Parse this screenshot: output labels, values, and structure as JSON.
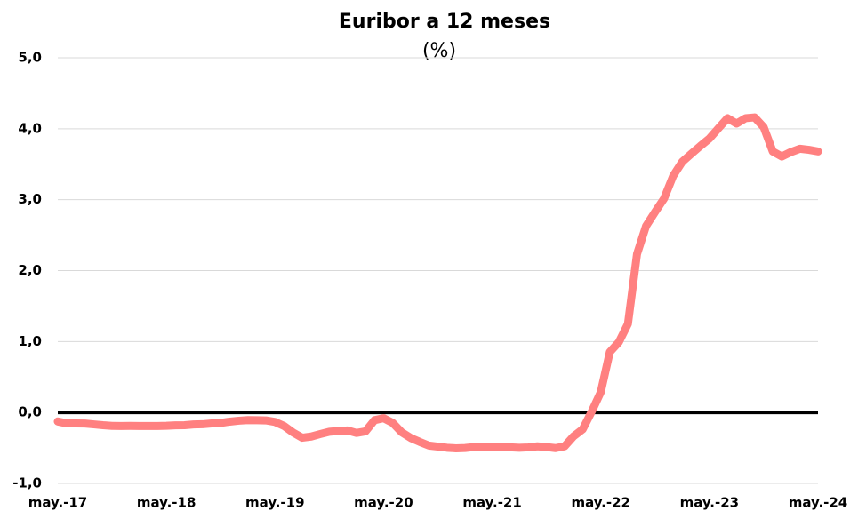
{
  "chart_data": {
    "type": "line",
    "title": "Euribor a 12 meses",
    "subtitle": "(%)",
    "categories": [
      "may.-17",
      null,
      null,
      null,
      null,
      null,
      null,
      null,
      null,
      null,
      null,
      null,
      "may.-18",
      null,
      null,
      null,
      null,
      null,
      null,
      null,
      null,
      null,
      null,
      null,
      "may.-19",
      null,
      null,
      null,
      null,
      null,
      null,
      null,
      null,
      null,
      null,
      null,
      "may.-20",
      null,
      null,
      null,
      null,
      null,
      null,
      null,
      null,
      null,
      null,
      null,
      "may.-21",
      null,
      null,
      null,
      null,
      null,
      null,
      null,
      null,
      null,
      null,
      null,
      "may.-22",
      null,
      null,
      null,
      null,
      null,
      null,
      null,
      null,
      null,
      null,
      null,
      "may.-23",
      null,
      null,
      null,
      null,
      null,
      null,
      null,
      null,
      null,
      null,
      null,
      "may.-24"
    ],
    "series": [
      {
        "name": "Euribor a 12 meses",
        "color": "#ff8080",
        "values": [
          -0.127,
          -0.154,
          -0.154,
          -0.156,
          -0.168,
          -0.18,
          -0.189,
          -0.19,
          -0.189,
          -0.191,
          -0.191,
          -0.19,
          -0.188,
          -0.181,
          -0.18,
          -0.169,
          -0.166,
          -0.154,
          -0.147,
          -0.129,
          -0.116,
          -0.108,
          -0.109,
          -0.112,
          -0.134,
          -0.19,
          -0.283,
          -0.356,
          -0.339,
          -0.304,
          -0.272,
          -0.261,
          -0.253,
          -0.288,
          -0.266,
          -0.108,
          -0.081,
          -0.147,
          -0.279,
          -0.359,
          -0.415,
          -0.466,
          -0.481,
          -0.497,
          -0.505,
          -0.501,
          -0.487,
          -0.484,
          -0.481,
          -0.484,
          -0.491,
          -0.498,
          -0.492,
          -0.477,
          -0.487,
          -0.502,
          -0.477,
          -0.335,
          -0.237,
          0.013,
          0.287,
          0.852,
          0.992,
          1.249,
          2.233,
          2.629,
          2.828,
          3.018,
          3.337,
          3.534,
          3.647,
          3.757,
          3.862,
          4.007,
          4.149,
          4.073,
          4.149,
          4.16,
          4.022,
          3.679,
          3.609,
          3.671,
          3.718,
          3.703,
          3.68
        ]
      }
    ],
    "ylim": [
      -1,
      5
    ],
    "yticks": [
      {
        "value": -1,
        "label": "-1,0"
      },
      {
        "value": 0,
        "label": "0,0"
      },
      {
        "value": 1,
        "label": "1,0"
      },
      {
        "value": 2,
        "label": "2,0"
      },
      {
        "value": 3,
        "label": "3,0"
      },
      {
        "value": 4,
        "label": "4,0"
      },
      {
        "value": 5,
        "label": "5,0"
      }
    ],
    "grid": true
  }
}
